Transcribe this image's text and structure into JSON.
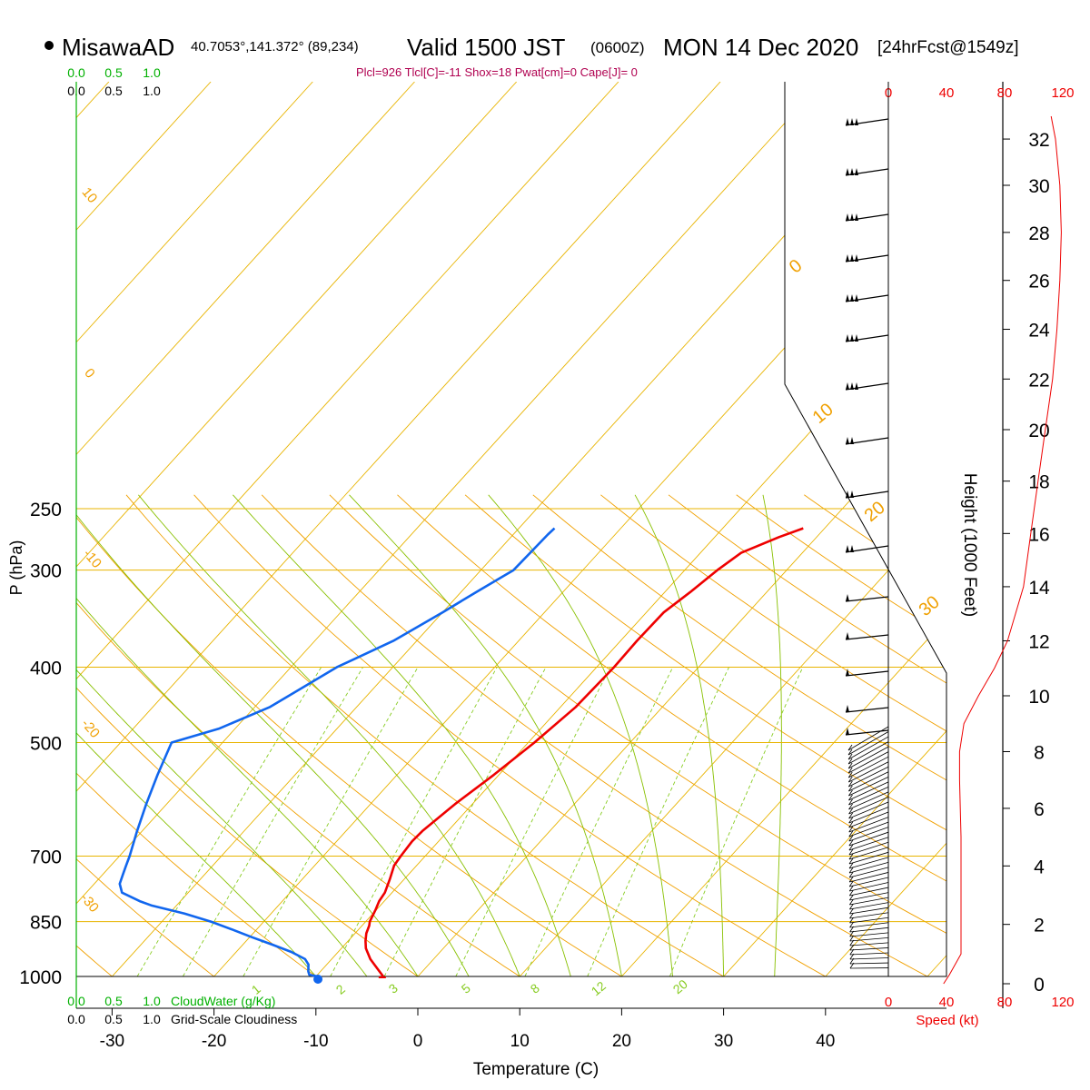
{
  "header": {
    "station": "MisawaAD",
    "coords": "40.7053°,141.372° (89,234)",
    "valid": "Valid 1500 JST",
    "utc": "(0600Z)",
    "date": "MON 14 Dec 2020",
    "fcst": "[24hrFcst@1549z]",
    "indices": "Plcl=926 Tlcl[C]=-11 Shox=18 Pwat[cm]=0 Cape[J]= 0"
  },
  "colors": {
    "temperature": "#ee0000",
    "dewpoint": "#1166ee",
    "isotherm": "#e8b400",
    "dry_adiabat": "#f0a000",
    "moist_adiabat": "#88c000",
    "mixing_ratio": "#88cc22",
    "cloud": "#00b000",
    "wind_speed": "#ee0000",
    "indices": "#b00050"
  },
  "chart_data": {
    "type": "line",
    "title": "MisawaAD Valid 1500 JST (0600Z) MON 14 Dec 2020",
    "xlabel": "Temperature (C)",
    "ylabel": "P (hPa)",
    "height_label": "Height (1000 Feet)",
    "speed_label": "Speed (kt)",
    "cloud_water_label": "CloudWater (g/Kg)",
    "cloudiness_label": "Grid-Scale Cloudiness",
    "pressure_ticks": [
      250,
      300,
      400,
      500,
      700,
      850,
      1000
    ],
    "temperature_ticks": [
      -30,
      -20,
      -10,
      0,
      10,
      20,
      30,
      40
    ],
    "height_ticks": [
      0,
      2,
      4,
      6,
      8,
      10,
      12,
      14,
      16,
      18,
      20,
      22,
      24,
      26,
      28,
      30,
      32
    ],
    "speed_ticks": [
      0,
      40,
      80,
      120
    ],
    "cloud_ticks": [
      "0.0",
      "0.5",
      "1.0"
    ],
    "dry_adiabat_labels": [
      "10",
      "0",
      "-10",
      "-20",
      "-30"
    ],
    "moist_adiabat_labels": [
      "0",
      "10",
      "20",
      "30"
    ],
    "mixing_ratio_labels": [
      "1",
      "2",
      "3",
      "5",
      "8",
      "12",
      "20"
    ],
    "series": [
      {
        "name": "Temperature",
        "pressure": [
          1000,
          980,
          950,
          920,
          900,
          880,
          860,
          850,
          820,
          800,
          780,
          750,
          720,
          700,
          670,
          650,
          600,
          550,
          500,
          450,
          400,
          370,
          340,
          320,
          300,
          285,
          272,
          265
        ],
        "values": [
          -3.4,
          -4.5,
          -6.2,
          -7.6,
          -8.3,
          -8.9,
          -9.3,
          -9.6,
          -10.1,
          -10.5,
          -10.7,
          -11.4,
          -12.2,
          -12.4,
          -12.6,
          -12.5,
          -11.7,
          -10.5,
          -9.4,
          -8.5,
          -8.3,
          -8.4,
          -8.3,
          -7.5,
          -6.8,
          -6.0,
          -3.7,
          -2.1
        ]
      },
      {
        "name": "Dewpoint",
        "pressure": [
          1000,
          995,
          985,
          965,
          950,
          930,
          910,
          890,
          870,
          850,
          830,
          810,
          800,
          780,
          760,
          740,
          720,
          700,
          650,
          600,
          550,
          500,
          480,
          450,
          400,
          370,
          340,
          320,
          300,
          270,
          265
        ],
        "values": [
          -9.8,
          -10.8,
          -11.2,
          -11.8,
          -12.6,
          -14.6,
          -17.1,
          -19.8,
          -22.4,
          -25.2,
          -28.5,
          -32.5,
          -34.0,
          -36.5,
          -37.5,
          -38.0,
          -38.5,
          -39.0,
          -40.5,
          -42.0,
          -43.5,
          -45.0,
          -41.6,
          -38.5,
          -35.5,
          -32.3,
          -30.0,
          -28.5,
          -26.8,
          -26.6,
          -26.5
        ]
      }
    ],
    "wind_speed_profile": {
      "height_kft": [
        0,
        0.3,
        1,
        3,
        5,
        7,
        8,
        9,
        10,
        11,
        12,
        14,
        16,
        18,
        20,
        22,
        24,
        26,
        28,
        30,
        32,
        33
      ],
      "speed_kt": [
        38,
        42,
        50,
        50,
        50,
        49,
        49,
        52,
        62,
        73,
        82,
        93,
        98,
        103,
        108,
        113,
        116,
        118,
        119,
        118,
        115,
        112
      ]
    },
    "cloud_water_gkg": [
      0,
      0,
      0,
      0,
      0,
      0,
      0
    ],
    "cloudiness": [
      0,
      0,
      0,
      0,
      0,
      0,
      0
    ]
  }
}
